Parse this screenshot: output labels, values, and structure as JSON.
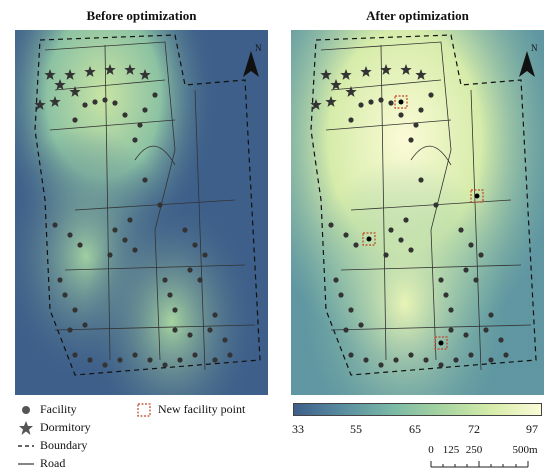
{
  "titles": {
    "before": "Before optimization",
    "after": "After optimization"
  },
  "north_label": "N",
  "legend": {
    "facility": "Facility",
    "dormitory": "Dormitory",
    "boundary": "Boundary",
    "road": "Road",
    "new_facility": "New facility point"
  },
  "colorbar": {
    "ticks": [
      "33",
      "55",
      "65",
      "72",
      "97"
    ],
    "colors": [
      "#3e5f8a",
      "#5a8ea0",
      "#7bb9a6",
      "#a7d4a0",
      "#d6ecaa",
      "#fbfbd6"
    ]
  },
  "scale_bar": {
    "labels": [
      "0",
      "125",
      "250",
      "500m"
    ]
  },
  "colors": {
    "low": "#3e5f8a",
    "mid": "#7bb9a6",
    "high": "#fbfbd6",
    "new_facility_box": "#c0462a"
  }
}
